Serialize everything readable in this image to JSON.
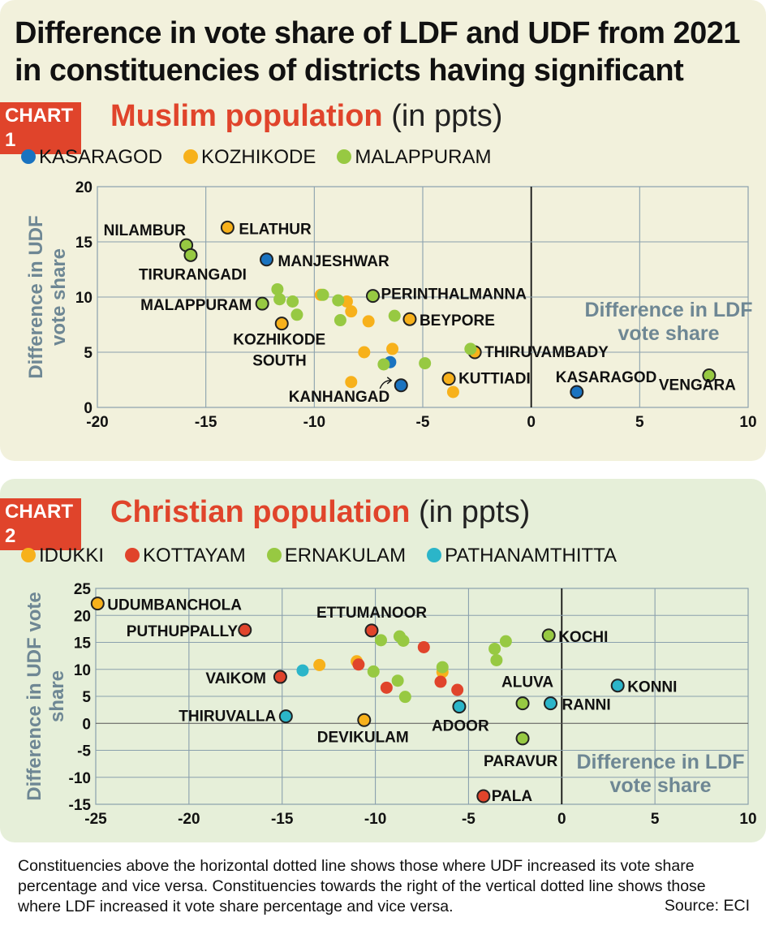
{
  "title": "Difference in vote share of LDF and UDF from 2021 in constituencies of districts having significant",
  "chart_data": [
    {
      "type": "scatter",
      "tag": "CHART 1",
      "subtitle_highlight": "Muslim population",
      "subtitle_rest": " (in ppts)",
      "xlabel": "Difference in LDF vote share",
      "ylabel": "Difference in UDF vote share",
      "xlim": [
        -20,
        10
      ],
      "ylim": [
        0,
        20
      ],
      "xticks": [
        -20,
        -15,
        -10,
        -5,
        0,
        5,
        10
      ],
      "yticks": [
        0,
        5,
        10,
        15,
        20
      ],
      "grid": true,
      "legend_position": "top",
      "series": [
        {
          "name": "KASARAGOD",
          "color": "#1a73c0",
          "points": [
            {
              "x": -12.2,
              "y": 13.4,
              "label": "MANJESHWAR"
            },
            {
              "x": -6.5,
              "y": 4.1
            },
            {
              "x": -6.0,
              "y": 2.0,
              "label": "KANHANGAD"
            },
            {
              "x": 2.1,
              "y": 1.4,
              "label": "KASARAGOD"
            }
          ]
        },
        {
          "name": "KOZHIKODE",
          "color": "#f7b11b",
          "points": [
            {
              "x": -14.0,
              "y": 16.3,
              "label": "ELATHUR"
            },
            {
              "x": -11.5,
              "y": 7.6,
              "label": "KOZHIKODE SOUTH"
            },
            {
              "x": -9.7,
              "y": 10.2
            },
            {
              "x": -8.5,
              "y": 9.6
            },
            {
              "x": -8.3,
              "y": 8.7
            },
            {
              "x": -7.5,
              "y": 7.8
            },
            {
              "x": -7.7,
              "y": 5.0
            },
            {
              "x": -8.3,
              "y": 2.3
            },
            {
              "x": -6.4,
              "y": 5.3
            },
            {
              "x": -5.6,
              "y": 8.0,
              "label": "BEYPORE"
            },
            {
              "x": -3.8,
              "y": 2.6,
              "label": "KUTTIADI"
            },
            {
              "x": -3.6,
              "y": 1.4
            },
            {
              "x": -2.6,
              "y": 5.0,
              "label": "THIRUVAMBADY"
            }
          ]
        },
        {
          "name": "MALAPPURAM",
          "color": "#97c942",
          "points": [
            {
              "x": -15.9,
              "y": 14.7,
              "label": "NILAMBUR"
            },
            {
              "x": -15.7,
              "y": 13.8,
              "label": "TIRURANGADI"
            },
            {
              "x": -12.4,
              "y": 9.4,
              "label": "MALAPPURAM"
            },
            {
              "x": -11.7,
              "y": 10.7
            },
            {
              "x": -11.6,
              "y": 9.8
            },
            {
              "x": -11.0,
              "y": 9.6
            },
            {
              "x": -10.8,
              "y": 8.4
            },
            {
              "x": -9.6,
              "y": 10.2
            },
            {
              "x": -8.9,
              "y": 9.7
            },
            {
              "x": -8.8,
              "y": 7.9
            },
            {
              "x": -7.3,
              "y": 10.1,
              "label": "PERINTHALMANNA"
            },
            {
              "x": -6.8,
              "y": 3.9
            },
            {
              "x": -6.3,
              "y": 8.3
            },
            {
              "x": -4.9,
              "y": 4.0
            },
            {
              "x": -2.8,
              "y": 5.3
            },
            {
              "x": 8.2,
              "y": 2.9,
              "label": "VENGARA"
            }
          ]
        }
      ]
    },
    {
      "type": "scatter",
      "tag": "CHART 2",
      "subtitle_highlight": "Christian population",
      "subtitle_rest": " (in ppts)",
      "xlabel": "Difference in LDF vote share",
      "ylabel": "Difference in UDF vote share",
      "xlim": [
        -25,
        10
      ],
      "ylim": [
        -15,
        25
      ],
      "xticks": [
        -25,
        -20,
        -15,
        -10,
        -5,
        0,
        5,
        10
      ],
      "yticks": [
        -15,
        -10,
        -5,
        0,
        5,
        10,
        15,
        20,
        25
      ],
      "grid": true,
      "legend_position": "top",
      "series": [
        {
          "name": "IDUKKI",
          "color": "#f7b11b",
          "points": [
            {
              "x": -24.9,
              "y": 22.2,
              "label": "UDUMBANCHOLA"
            },
            {
              "x": -13.0,
              "y": 10.8
            },
            {
              "x": -11.0,
              "y": 11.5
            },
            {
              "x": -10.6,
              "y": 0.6,
              "label": "DEVIKULAM"
            },
            {
              "x": -6.4,
              "y": 9.5
            }
          ]
        },
        {
          "name": "KOTTAYAM",
          "color": "#e0442b",
          "points": [
            {
              "x": -17.0,
              "y": 17.3,
              "label": "PUTHUPPALLY"
            },
            {
              "x": -15.1,
              "y": 8.6,
              "label": "VAIKOM"
            },
            {
              "x": -10.9,
              "y": 10.9
            },
            {
              "x": -10.2,
              "y": 17.2,
              "label": "ETTUMANOOR"
            },
            {
              "x": -9.4,
              "y": 6.6
            },
            {
              "x": -7.4,
              "y": 14.1
            },
            {
              "x": -6.5,
              "y": 7.7
            },
            {
              "x": -5.6,
              "y": 6.2
            },
            {
              "x": -4.2,
              "y": -13.5,
              "label": "PALA"
            }
          ]
        },
        {
          "name": "ERNAKULAM",
          "color": "#97c942",
          "points": [
            {
              "x": -10.1,
              "y": 9.6
            },
            {
              "x": -9.7,
              "y": 15.4
            },
            {
              "x": -8.7,
              "y": 16.1
            },
            {
              "x": -8.5,
              "y": 15.3
            },
            {
              "x": -8.8,
              "y": 7.9
            },
            {
              "x": -8.4,
              "y": 4.9
            },
            {
              "x": -6.4,
              "y": 10.4
            },
            {
              "x": -3.6,
              "y": 13.8
            },
            {
              "x": -3.5,
              "y": 11.7
            },
            {
              "x": -3.0,
              "y": 15.2
            },
            {
              "x": -2.1,
              "y": 3.7,
              "label": "ALUVA"
            },
            {
              "x": -2.1,
              "y": -2.8,
              "label": "PARAVUR"
            },
            {
              "x": -0.7,
              "y": 16.3,
              "label": "KOCHI"
            }
          ]
        },
        {
          "name": "PATHANAMTHITTA",
          "color": "#2bb5c9",
          "points": [
            {
              "x": -13.9,
              "y": 9.8
            },
            {
              "x": -14.8,
              "y": 1.3,
              "label": "THIRUVALLA"
            },
            {
              "x": -5.5,
              "y": 3.1,
              "label": "ADOOR"
            },
            {
              "x": -0.6,
              "y": 3.7,
              "label": "RANNI"
            },
            {
              "x": 3.0,
              "y": 7.0,
              "label": "KONNI"
            }
          ]
        }
      ]
    }
  ],
  "footnote": "Constituencies above the horizontal dotted line shows those where UDF increased its vote share percentage and vice versa. Constituencies towards the right of the vertical dotted line shows those where LDF increased it vote share percentage and vice versa.",
  "source": "Source: ECI"
}
